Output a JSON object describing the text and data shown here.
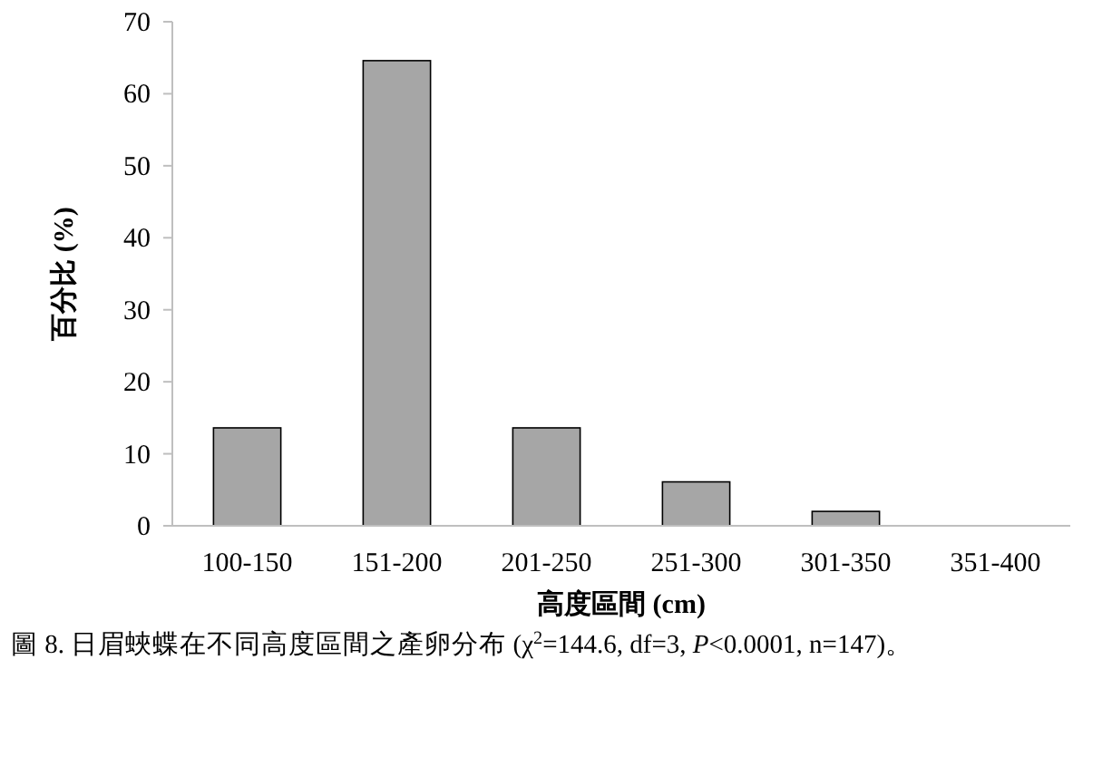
{
  "chart_data": {
    "type": "bar",
    "categories": [
      "100-150",
      "151-200",
      "201-250",
      "251-300",
      "301-350",
      "351-400"
    ],
    "values": [
      13.6,
      64.6,
      13.6,
      6.1,
      2.0,
      0
    ],
    "color": "#a6a6a6",
    "xlabel": "高度區間 (cm)",
    "ylabel": "百分比 (%)",
    "ylim": [
      0,
      70
    ],
    "yticks": [
      0,
      10,
      20,
      30,
      40,
      50,
      60,
      70
    ],
    "annotations": [
      "圖 8. 日眉蛺蝶在不同高度區間之產卵分布 (χ$^{2}$=144.6, df=3, *P*<0.0001, n=147)。"
    ]
  }
}
